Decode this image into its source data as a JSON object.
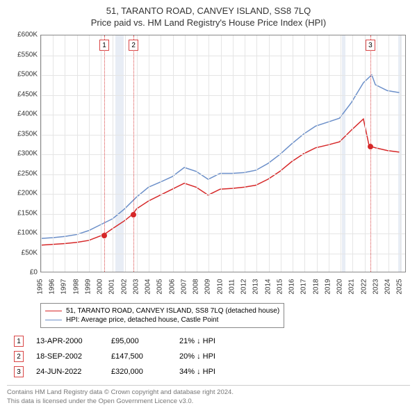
{
  "title": "51, TARANTO ROAD, CANVEY ISLAND, SS8 7LQ",
  "subtitle": "Price paid vs. HM Land Registry's House Price Index (HPI)",
  "chart": {
    "type": "line",
    "background_color": "#ffffff",
    "grid_color": "#e5e5e5",
    "recession_band_color": "#e8edf5",
    "axis_color": "#888888",
    "xlim": [
      1995,
      2025.5
    ],
    "ylim": [
      0,
      600000
    ],
    "ytick_step": 50000,
    "ytick_labels": [
      "£0",
      "£50K",
      "£100K",
      "£150K",
      "£200K",
      "£250K",
      "£300K",
      "£350K",
      "£400K",
      "£450K",
      "£500K",
      "£550K",
      "£600K"
    ],
    "xticks": [
      1995,
      1996,
      1997,
      1998,
      1999,
      2000,
      2001,
      2002,
      2003,
      2004,
      2005,
      2006,
      2007,
      2008,
      2009,
      2010,
      2011,
      2012,
      2013,
      2014,
      2015,
      2016,
      2017,
      2018,
      2019,
      2020,
      2021,
      2022,
      2023,
      2024,
      2025
    ],
    "recession_bands": [
      [
        2001.2,
        2001.9
      ],
      [
        2020.1,
        2020.4
      ],
      [
        2024.8,
        2025.1
      ]
    ],
    "series": [
      {
        "name": "51, TARANTO ROAD, CANVEY ISLAND, SS8 7LQ (detached house)",
        "color": "#d62728",
        "line_width": 1.5,
        "points": [
          [
            1995,
            68000
          ],
          [
            1996,
            70000
          ],
          [
            1997,
            72000
          ],
          [
            1998,
            75000
          ],
          [
            1999,
            80000
          ],
          [
            2000.28,
            95000
          ],
          [
            2001,
            110000
          ],
          [
            2002,
            130000
          ],
          [
            2002.72,
            147500
          ],
          [
            2003,
            160000
          ],
          [
            2004,
            180000
          ],
          [
            2005,
            195000
          ],
          [
            2006,
            210000
          ],
          [
            2007,
            225000
          ],
          [
            2008,
            215000
          ],
          [
            2009,
            195000
          ],
          [
            2010,
            210000
          ],
          [
            2011,
            212000
          ],
          [
            2012,
            215000
          ],
          [
            2013,
            220000
          ],
          [
            2014,
            235000
          ],
          [
            2015,
            255000
          ],
          [
            2016,
            280000
          ],
          [
            2017,
            300000
          ],
          [
            2018,
            315000
          ],
          [
            2019,
            322000
          ],
          [
            2020,
            330000
          ],
          [
            2021,
            360000
          ],
          [
            2022,
            388000
          ],
          [
            2022.48,
            320000
          ],
          [
            2023,
            315000
          ],
          [
            2024,
            308000
          ],
          [
            2025,
            304000
          ]
        ]
      },
      {
        "name": "HPI: Average price, detached house, Castle Point",
        "color": "#6b8fc9",
        "line_width": 1.5,
        "points": [
          [
            1995,
            85000
          ],
          [
            1996,
            87000
          ],
          [
            1997,
            90000
          ],
          [
            1998,
            95000
          ],
          [
            1999,
            105000
          ],
          [
            2000,
            120000
          ],
          [
            2001,
            135000
          ],
          [
            2002,
            160000
          ],
          [
            2003,
            190000
          ],
          [
            2004,
            215000
          ],
          [
            2005,
            228000
          ],
          [
            2006,
            242000
          ],
          [
            2007,
            265000
          ],
          [
            2008,
            255000
          ],
          [
            2009,
            235000
          ],
          [
            2010,
            250000
          ],
          [
            2011,
            250000
          ],
          [
            2012,
            252000
          ],
          [
            2013,
            258000
          ],
          [
            2014,
            275000
          ],
          [
            2015,
            298000
          ],
          [
            2016,
            325000
          ],
          [
            2017,
            350000
          ],
          [
            2018,
            370000
          ],
          [
            2019,
            380000
          ],
          [
            2020,
            390000
          ],
          [
            2021,
            430000
          ],
          [
            2022,
            480000
          ],
          [
            2022.7,
            500000
          ],
          [
            2023,
            475000
          ],
          [
            2024,
            460000
          ],
          [
            2025,
            455000
          ]
        ]
      }
    ],
    "sale_markers": [
      {
        "idx": "1",
        "x": 2000.28,
        "y": 95000,
        "color": "#d62728",
        "label_y_offset": -30
      },
      {
        "idx": "2",
        "x": 2002.72,
        "y": 147500,
        "color": "#d62728",
        "label_y_offset": -30
      },
      {
        "idx": "3",
        "x": 2022.48,
        "y": 320000,
        "color": "#d62728",
        "label_y_offset": -220
      }
    ],
    "marker_line_color": "#d94545",
    "marker_box_border": "#d94545"
  },
  "legend": {
    "items": [
      {
        "color": "#d62728",
        "label": "51, TARANTO ROAD, CANVEY ISLAND, SS8 7LQ (detached house)"
      },
      {
        "color": "#6b8fc9",
        "label": "HPI: Average price, detached house, Castle Point"
      }
    ]
  },
  "sales": [
    {
      "idx": "1",
      "date": "13-APR-2000",
      "price": "£95,000",
      "diff": "21% ↓ HPI"
    },
    {
      "idx": "2",
      "date": "18-SEP-2002",
      "price": "£147,500",
      "diff": "20% ↓ HPI"
    },
    {
      "idx": "3",
      "date": "24-JUN-2022",
      "price": "£320,000",
      "diff": "34% ↓ HPI"
    }
  ],
  "footnote_line1": "Contains HM Land Registry data © Crown copyright and database right 2024.",
  "footnote_line2": "This data is licensed under the Open Government Licence v3.0."
}
